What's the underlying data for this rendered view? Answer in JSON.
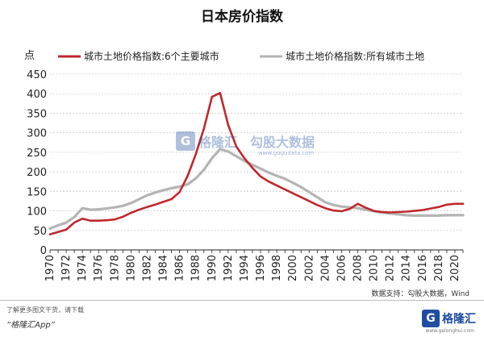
{
  "title": "日本房价指数",
  "source": "数据支持：勾股大数据，Wind",
  "footer": {
    "note": "了解更多图文干货，请下载",
    "app": "“格隆汇App”",
    "brand_icon": "G",
    "brand_name": "格隆汇",
    "brand_domain": "www.gelonghui.com"
  },
  "watermarks": {
    "left_icon": "G",
    "left_text": "格隆汇",
    "right_text": "勾股大数据",
    "right_sub": "www.gogudata.com"
  },
  "colors": {
    "six_major": "#c0282d",
    "all_cities": "#b4b4b4",
    "grid": "#cccccc",
    "axis": "#222222"
  },
  "chart_data": {
    "type": "line",
    "title": "日本房价指数",
    "ylabel": "点",
    "ylim": [
      0,
      450
    ],
    "yticks": [
      0,
      50,
      100,
      150,
      200,
      250,
      300,
      350,
      400,
      450
    ],
    "xlim": [
      1970,
      2021
    ],
    "xticks": [
      1970,
      1972,
      1974,
      1976,
      1978,
      1980,
      1982,
      1984,
      1986,
      1988,
      1990,
      1992,
      1994,
      1996,
      1998,
      2000,
      2002,
      2004,
      2006,
      2008,
      2010,
      2012,
      2014,
      2016,
      2018,
      2020
    ],
    "legend_position": "top",
    "grid": "horizontal",
    "x": [
      1970,
      1971,
      1972,
      1973,
      1974,
      1975,
      1976,
      1977,
      1978,
      1979,
      1980,
      1981,
      1982,
      1983,
      1984,
      1985,
      1986,
      1987,
      1988,
      1989,
      1990,
      1991,
      1992,
      1993,
      1994,
      1995,
      1996,
      1997,
      1998,
      1999,
      2000,
      2001,
      2002,
      2003,
      2004,
      2005,
      2006,
      2007,
      2008,
      2009,
      2010,
      2011,
      2012,
      2013,
      2014,
      2015,
      2016,
      2017,
      2018,
      2019,
      2020,
      2021
    ],
    "series": [
      {
        "name": "城市土地价格指数:6个主要城市",
        "values": [
          40,
          46,
          52,
          70,
          80,
          75,
          75,
          76,
          78,
          85,
          95,
          103,
          110,
          116,
          123,
          130,
          148,
          190,
          245,
          310,
          392,
          402,
          320,
          265,
          235,
          210,
          188,
          175,
          165,
          155,
          145,
          135,
          125,
          115,
          107,
          101,
          99,
          105,
          118,
          108,
          100,
          97,
          96,
          97,
          98,
          100,
          102,
          106,
          110,
          116,
          118,
          118
        ]
      },
      {
        "name": "城市土地价格指数:所有城市土地",
        "values": [
          55,
          63,
          70,
          84,
          107,
          103,
          104,
          106,
          109,
          113,
          120,
          130,
          140,
          147,
          153,
          158,
          162,
          168,
          183,
          205,
          235,
          258,
          252,
          240,
          228,
          218,
          208,
          198,
          190,
          182,
          172,
          161,
          148,
          135,
          122,
          115,
          111,
          109,
          107,
          103,
          99,
          96,
          93,
          91,
          89,
          88,
          88,
          88,
          88,
          89,
          89,
          89
        ]
      }
    ]
  }
}
